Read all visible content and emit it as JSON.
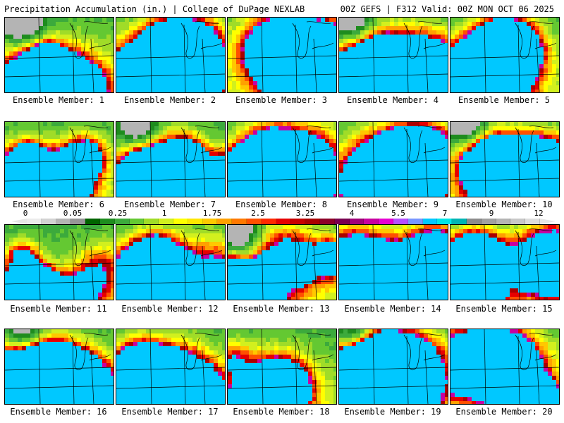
{
  "header": {
    "title_left": "Precipitation Accumulation (in.) | College of DuPage NEXLAB",
    "title_right": "00Z GEFS | F312 Valid: 00Z MON OCT 06 2025"
  },
  "legend": {
    "tick_labels": [
      "0",
      "0.05",
      "0.25",
      "1",
      "1.75",
      "2.5",
      "3.25",
      "4",
      "5.5",
      "7",
      "9",
      "12"
    ],
    "colors": [
      "#ebebeb",
      "#d2d2d2",
      "#b4b4b4",
      "#969696",
      "#006400",
      "#1e8c1e",
      "#3caa3c",
      "#64c832",
      "#a0dc28",
      "#d2f01e",
      "#ffff00",
      "#ffe600",
      "#ffc800",
      "#ffa000",
      "#ff7800",
      "#ff5000",
      "#ff2800",
      "#e60000",
      "#c80000",
      "#aa0000",
      "#8c0028",
      "#780050",
      "#a00078",
      "#c800a0",
      "#e600d2",
      "#b450ff",
      "#7896ff",
      "#00c8ff",
      "#00e6e6",
      "#00b4b4",
      "#8c8c8c",
      "#a0a0a0",
      "#b4b4b4",
      "#c8c8c8",
      "#dcdcdc"
    ]
  },
  "members": [
    {
      "label": "Ensemble Member: 1"
    },
    {
      "label": "Ensemble Member: 2"
    },
    {
      "label": "Ensemble Member: 3"
    },
    {
      "label": "Ensemble Member: 4"
    },
    {
      "label": "Ensemble Member: 5"
    },
    {
      "label": "Ensemble Member: 6"
    },
    {
      "label": "Ensemble Member: 7"
    },
    {
      "label": "Ensemble Member: 8"
    },
    {
      "label": "Ensemble Member: 9"
    },
    {
      "label": "Ensemble Member: 10"
    },
    {
      "label": "Ensemble Member: 11"
    },
    {
      "label": "Ensemble Member: 12"
    },
    {
      "label": "Ensemble Member: 13"
    },
    {
      "label": "Ensemble Member: 14"
    },
    {
      "label": "Ensemble Member: 15"
    },
    {
      "label": "Ensemble Member: 16"
    },
    {
      "label": "Ensemble Member: 17"
    },
    {
      "label": "Ensemble Member: 18"
    },
    {
      "label": "Ensemble Member: 19"
    },
    {
      "label": "Ensemble Member: 20"
    }
  ]
}
